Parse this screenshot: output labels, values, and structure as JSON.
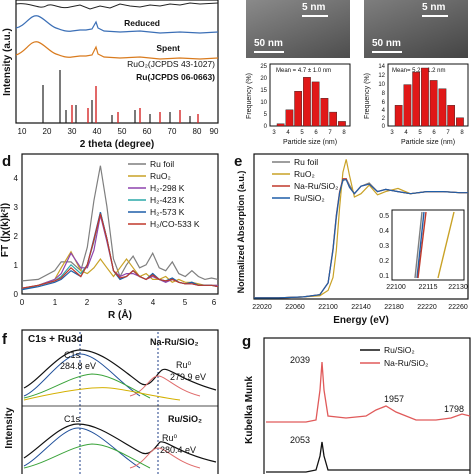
{
  "panel_a": {
    "xlabel": "2 theta (degree)",
    "ylabel": "Intensity (a.u.)",
    "xticks": [
      "10",
      "20",
      "30",
      "40",
      "50",
      "60",
      "70",
      "80",
      "90"
    ],
    "labels": [
      {
        "text": "Reduced",
        "color": "#3b6fb6"
      },
      {
        "text": "Spent",
        "color": "#d97b1e"
      },
      {
        "text": "RuO₂(JCPDS 43-1027)",
        "color": "#222222"
      },
      {
        "text": "Ru(JCPDS 06-0663)",
        "color": "#d62728"
      }
    ]
  },
  "panel_b": {
    "left": {
      "scale_top": "5 nm",
      "scale_main": "50 nm",
      "mean": "Mean = 4.7 ± 1.0 nm",
      "ylabel": "Frequency (%)",
      "xlabel": "Particle size (nm)",
      "yticks": [
        "0",
        "5",
        "10",
        "15",
        "20",
        "25"
      ],
      "xticks": [
        "3",
        "4",
        "5",
        "6",
        "7",
        "8"
      ]
    },
    "right": {
      "scale_top": "5 nm",
      "scale_main": "50 nm",
      "mean": "Mean= 5.2 ± 1.2 nm",
      "ylabel": "Frequency (%)",
      "xlabel": "Particle size (nm)",
      "yticks": [
        "0",
        "2",
        "4",
        "6",
        "8",
        "10",
        "12",
        "14"
      ],
      "xticks": [
        "3",
        "4",
        "5",
        "6",
        "7",
        "8"
      ]
    }
  },
  "panel_d": {
    "letter": "d",
    "xlabel": "R (Å)",
    "ylabel": "FT (|χ(k)k²|)",
    "xticks": [
      "0",
      "1",
      "2",
      "3",
      "4",
      "5",
      "6"
    ],
    "yticks": [
      "0",
      "1",
      "2",
      "3",
      "4"
    ],
    "legend": [
      {
        "text": "Ru foil",
        "color": "#7f7f7f"
      },
      {
        "text": "RuO₂",
        "color": "#c9a227"
      },
      {
        "text": "H₂-298 K",
        "color": "#8e44ad"
      },
      {
        "text": "H₂-423 K",
        "color": "#2ca8a8"
      },
      {
        "text": "H₂-573 K",
        "color": "#1f5fa8"
      },
      {
        "text": "H₂/CO-533 K",
        "color": "#c0392b"
      }
    ]
  },
  "panel_e": {
    "letter": "e",
    "xlabel": "Energy (eV)",
    "ylabel": "Normalized Absorption (a.u.)",
    "xticks": [
      "22020",
      "22060",
      "22100",
      "22140",
      "22180",
      "22220",
      "22260"
    ],
    "inset_xticks": [
      "22100",
      "22115",
      "22130"
    ],
    "inset_yticks": [
      "0.1",
      "0.2",
      "0.3",
      "0.4",
      "0.5"
    ],
    "legend": [
      {
        "text": "Ru foil",
        "color": "#7f7f7f"
      },
      {
        "text": "RuO₂",
        "color": "#c9a227"
      },
      {
        "text": "Na-Ru/SiO₂",
        "color": "#c0392b"
      },
      {
        "text": "Ru/SiO₂",
        "color": "#1f5fa8"
      }
    ]
  },
  "panel_f": {
    "letter": "f",
    "ylabel": "Intensity",
    "title": "C1s + Ru3d",
    "top": {
      "name": "Na-Ru/SiO₂",
      "c1s": "C1s",
      "c1s_value": "284.8 eV",
      "ru": "Ru⁰",
      "ru_value": "279.9 eV"
    },
    "bottom": {
      "name": "Ru/SiO₂",
      "c1s": "C1s",
      "ru": "Ru⁰",
      "ru_value": "280.4 eV"
    }
  },
  "panel_g": {
    "letter": "g",
    "ylabel": "Kubelka Munk",
    "legend": [
      {
        "text": "Ru/SiO₂",
        "color": "#111111"
      },
      {
        "text": "Na-Ru/SiO₂",
        "color": "#e05a5a"
      }
    ],
    "peaks": [
      "2039",
      "1957",
      "1798",
      "2053"
    ]
  },
  "chart_data": [
    {
      "type": "line",
      "xlabel": "R (Å)",
      "ylabel": "FT (|χ(k)k²|)",
      "xlim": [
        0,
        6
      ],
      "ylim": [
        0,
        4.8
      ],
      "x": [
        0.0,
        0.5,
        1.0,
        1.2,
        1.5,
        1.8,
        2.0,
        2.2,
        2.4,
        2.6,
        2.8,
        3.0,
        3.2,
        3.4,
        3.6,
        3.8,
        4.0,
        4.2,
        4.4,
        4.6,
        4.8,
        5.0,
        5.2,
        5.4,
        5.6,
        5.8,
        6.0
      ],
      "series": [
        {
          "name": "Ru foil",
          "color": "#7f7f7f",
          "offset": 0,
          "values": [
            0.45,
            0.5,
            0.8,
            1.1,
            1.1,
            0.8,
            1.6,
            3.2,
            4.4,
            3.0,
            1.2,
            0.6,
            1.0,
            1.3,
            0.9,
            1.0,
            1.4,
            0.9,
            0.8,
            1.1,
            0.7,
            0.6,
            0.8,
            0.6,
            0.5,
            0.55,
            0.5
          ]
        },
        {
          "name": "RuO₂",
          "color": "#c9a227",
          "offset": 0,
          "values": [
            0.2,
            0.3,
            0.5,
            0.9,
            1.45,
            0.8,
            0.7,
            0.9,
            1.2,
            0.9,
            0.6,
            0.9,
            1.2,
            0.9,
            0.6,
            0.7,
            0.5,
            0.5,
            0.6,
            0.4,
            0.5,
            0.4,
            0.4,
            0.35,
            0.3,
            0.3,
            0.3
          ]
        },
        {
          "name": "H₂-298 K",
          "color": "#8e44ad",
          "offset": 0,
          "values": [
            0.2,
            0.3,
            0.5,
            0.7,
            1.4,
            0.9,
            0.9,
            1.5,
            2.7,
            1.8,
            0.8,
            0.6,
            0.7,
            0.7,
            0.6,
            0.5,
            0.6,
            0.5,
            0.4,
            0.5,
            0.4,
            0.35,
            0.35,
            0.3,
            0.3,
            0.3,
            0.3
          ]
        },
        {
          "name": "H₂-423 K",
          "color": "#2ca8a8",
          "offset": 0,
          "values": [
            0.15,
            0.3,
            0.45,
            0.6,
            1.0,
            0.7,
            1.0,
            1.8,
            2.8,
            1.9,
            0.8,
            0.5,
            0.6,
            0.8,
            0.6,
            0.5,
            0.7,
            0.5,
            0.45,
            0.55,
            0.4,
            0.35,
            0.4,
            0.3,
            0.3,
            0.3,
            0.25
          ]
        },
        {
          "name": "H₂-573 K",
          "color": "#1f5fa8",
          "offset": 0,
          "values": [
            0.15,
            0.25,
            0.4,
            0.5,
            0.8,
            0.6,
            1.0,
            1.9,
            2.8,
            1.9,
            0.8,
            0.5,
            0.6,
            0.8,
            0.6,
            0.5,
            0.7,
            0.5,
            0.45,
            0.55,
            0.4,
            0.35,
            0.4,
            0.3,
            0.3,
            0.3,
            0.25
          ]
        },
        {
          "name": "H₂/CO-533 K",
          "color": "#c0392b",
          "offset": 0,
          "values": [
            0.2,
            0.3,
            0.45,
            0.55,
            0.9,
            0.6,
            1.0,
            1.85,
            2.75,
            1.9,
            0.8,
            0.55,
            0.6,
            0.8,
            0.6,
            0.5,
            0.65,
            0.5,
            0.45,
            0.5,
            0.4,
            0.35,
            0.35,
            0.3,
            0.3,
            0.3,
            0.25
          ]
        }
      ]
    },
    {
      "type": "line",
      "xlabel": "Energy (eV)",
      "ylabel": "Normalized Absorption (a.u.)",
      "xlim": [
        22010,
        22270
      ],
      "ylim": [
        0,
        1.35
      ],
      "x": [
        22010,
        22040,
        22070,
        22090,
        22100,
        22106,
        22110,
        22114,
        22118,
        22122,
        22126,
        22132,
        22140,
        22150,
        22160,
        22170,
        22185,
        22200,
        22220,
        22240,
        22260,
        22270
      ],
      "series": [
        {
          "name": "Ru foil",
          "color": "#7f7f7f",
          "values": [
            0.01,
            0.01,
            0.02,
            0.04,
            0.15,
            0.45,
            0.75,
            0.98,
            1.1,
            1.12,
            1.06,
            0.98,
            1.05,
            1.08,
            1.0,
            1.02,
            1.0,
            0.98,
            1.0,
            1.0,
            0.99,
            0.99
          ]
        },
        {
          "name": "RuO₂",
          "color": "#c9a227",
          "values": [
            0.01,
            0.01,
            0.02,
            0.03,
            0.08,
            0.2,
            0.45,
            0.85,
            1.18,
            1.3,
            1.15,
            0.95,
            0.98,
            1.06,
            0.97,
            1.0,
            1.03,
            0.98,
            1.0,
            1.0,
            0.99,
            0.99
          ]
        },
        {
          "name": "Na-Ru/SiO₂",
          "color": "#c0392b",
          "values": [
            0.01,
            0.01,
            0.02,
            0.04,
            0.15,
            0.47,
            0.78,
            1.0,
            1.12,
            1.12,
            1.04,
            0.98,
            1.05,
            1.07,
            1.0,
            1.02,
            1.0,
            0.98,
            1.0,
            1.0,
            0.99,
            0.99
          ]
        },
        {
          "name": "Ru/SiO₂",
          "color": "#1f5fa8",
          "values": [
            0.01,
            0.01,
            0.02,
            0.04,
            0.15,
            0.46,
            0.77,
            0.99,
            1.11,
            1.11,
            1.04,
            0.98,
            1.05,
            1.07,
            1.0,
            1.02,
            1.0,
            0.98,
            1.0,
            1.0,
            0.99,
            0.99
          ]
        }
      ]
    },
    {
      "type": "bar",
      "xlabel": "Particle size (nm)",
      "ylabel": "Frequency (%)",
      "categories": [
        "3.25",
        "3.75",
        "4.25",
        "4.75",
        "5.25",
        "5.75",
        "6.25",
        "6.75"
      ],
      "values": [
        1,
        7,
        15,
        21,
        19,
        12,
        6,
        2
      ],
      "ylim": [
        0,
        25
      ]
    },
    {
      "type": "bar",
      "xlabel": "Particle size (nm)",
      "ylabel": "Frequency (%)",
      "categories": [
        "3.5",
        "4.0",
        "4.5",
        "5.0",
        "5.5",
        "6.0",
        "6.5",
        "7.0"
      ],
      "values": [
        5,
        10,
        13,
        14,
        11,
        9,
        5,
        2
      ],
      "ylim": [
        0,
        14
      ]
    }
  ]
}
